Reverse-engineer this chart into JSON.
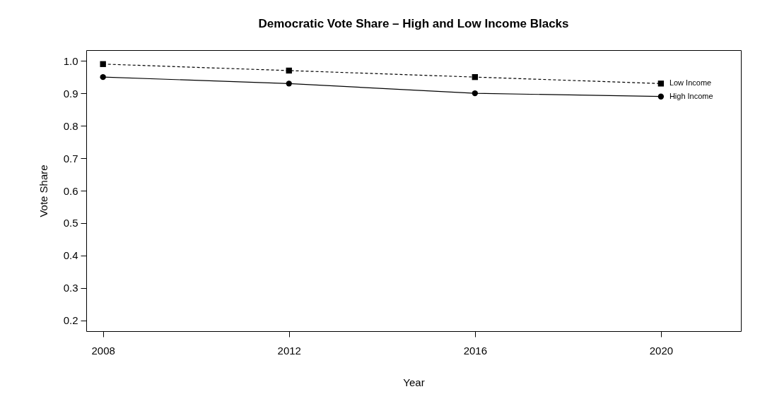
{
  "chart_data": {
    "type": "line",
    "title": "Democratic Vote Share – High and Low Income Blacks",
    "xlabel": "Year",
    "ylabel": "Vote Share",
    "x": [
      2008,
      2012,
      2016,
      2020
    ],
    "series": [
      {
        "name": "Low Income",
        "color": "#000000",
        "values": [
          0.99,
          0.97,
          0.95,
          0.93
        ],
        "marker": "square",
        "line_style": "dashed"
      },
      {
        "name": "High Income",
        "color": "#000000",
        "values": [
          0.95,
          0.93,
          0.9,
          0.89
        ],
        "marker": "circle",
        "line_style": "solid"
      }
    ],
    "xlim": [
      2007.64,
      2021.72
    ],
    "xticks": [
      2008,
      2012,
      2016,
      2020
    ],
    "ylim": [
      0.167,
      1.033
    ],
    "yticks": [
      0.2,
      0.3,
      0.4,
      0.5,
      0.6,
      0.7,
      0.8,
      0.9,
      {
        "value": 1.0,
        "label": "1.0"
      }
    ],
    "grid": false
  }
}
